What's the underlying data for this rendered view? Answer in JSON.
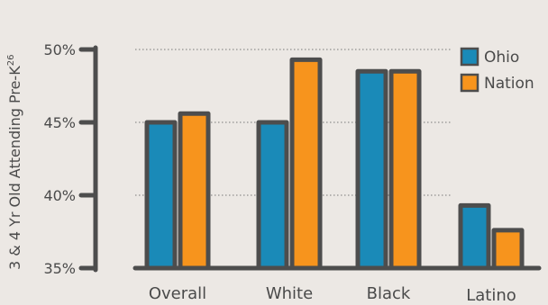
{
  "chart_data": {
    "type": "bar",
    "ylabel": "3 & 4 Yr Old Attending Pre-K",
    "ylabel_superscript": "26",
    "categories": [
      "Overall",
      "White",
      "Black",
      "Latino"
    ],
    "series": [
      {
        "name": "Ohio",
        "values": [
          45.0,
          45.0,
          48.5,
          39.3
        ],
        "color": "#1a8ab8"
      },
      {
        "name": "Nation",
        "values": [
          45.6,
          49.3,
          48.5,
          37.6
        ],
        "color": "#f7941d"
      }
    ],
    "ylim": [
      35,
      50
    ],
    "yticks": [
      {
        "value": 50,
        "label": "50%"
      },
      {
        "value": 45,
        "label": "45%"
      },
      {
        "value": 40,
        "label": "40%"
      },
      {
        "value": 35,
        "label": "35%"
      }
    ],
    "grid": true,
    "legend": "top-right",
    "outline_color": "#4d4d4d"
  }
}
